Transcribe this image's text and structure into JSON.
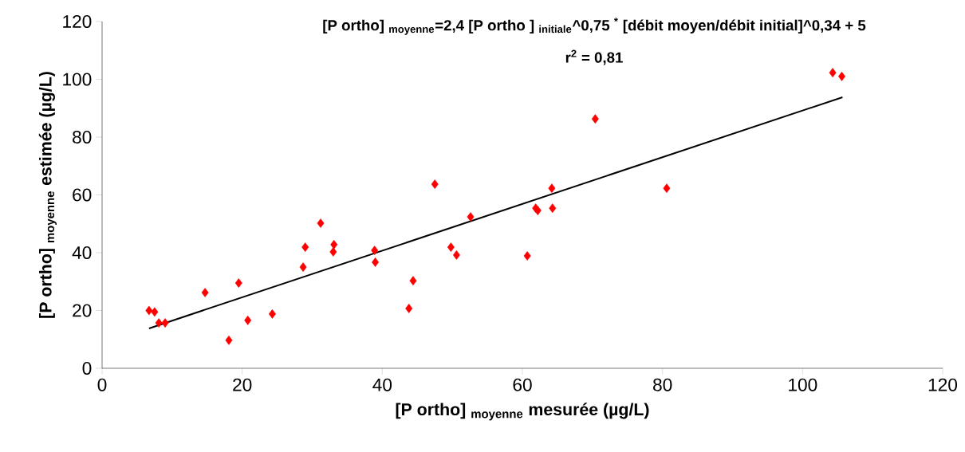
{
  "chart_data": {
    "type": "scatter",
    "xlabel": "[P ortho] $_{moyenne}$ mesurée (µg/L)",
    "ylabel": "[P ortho] $_{moyenne}$ estimée (µg/L)",
    "annotations": [
      "[P ortho] $_{moyenne}$=2,4 [P ortho ] $_{initiale}$^0,75 $^{*}$ [débit moyen/débit initial]^0,34 +  5",
      "r$^{2}$ = 0,81"
    ],
    "xlim": [
      0,
      120
    ],
    "ylim": [
      0,
      120
    ],
    "xticks": [
      0,
      20,
      40,
      60,
      80,
      100,
      120
    ],
    "yticks": [
      0,
      20,
      40,
      60,
      80,
      100,
      120
    ],
    "grid": false,
    "series": [
      {
        "marker": "diamond",
        "color": "#ff0000",
        "x": [
          6.7,
          7.5,
          8.1,
          9.0,
          14.7,
          18.1,
          19.5,
          20.8,
          24.3,
          28.7,
          29.0,
          31.2,
          33.0,
          33.1,
          38.9,
          39.0,
          43.8,
          44.4,
          47.5,
          49.8,
          50.6,
          52.6,
          60.7,
          61.9,
          62.2,
          64.2,
          64.3,
          70.4,
          80.6,
          104.3,
          105.6
        ],
        "values": [
          20.0,
          19.5,
          15.7,
          15.7,
          26.2,
          9.7,
          29.5,
          16.6,
          18.8,
          35.0,
          41.9,
          50.2,
          40.3,
          42.8,
          40.8,
          36.7,
          20.7,
          30.3,
          63.7,
          41.9,
          39.2,
          52.4,
          38.9,
          55.4,
          54.6,
          62.3,
          55.4,
          86.3,
          62.3,
          102.3,
          101.0
        ]
      },
      {
        "type": "line",
        "marker": "none",
        "color": "#000000",
        "x": [
          6.7,
          105.7
        ],
        "values": [
          13.8,
          93.8
        ]
      }
    ]
  }
}
